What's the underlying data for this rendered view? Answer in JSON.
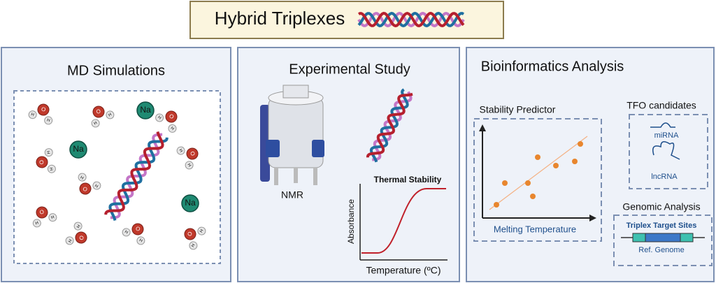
{
  "header": {
    "title": "Hybrid Triplexes"
  },
  "panels": [
    {
      "title": "MD Simulations",
      "ion": "Na",
      "atoms": {
        "oxygen": "O",
        "hydrogen": "H"
      }
    },
    {
      "title": "Experimental Study",
      "instrument": "NMR",
      "plot": {
        "title": "Thermal Stability",
        "y_label": "Absorbance",
        "x_label": "Temperature (ºC)"
      }
    },
    {
      "title": "Bioinformatics Analysis",
      "predictor": {
        "title": "Stability Predictor",
        "x_label": "Melting Temperature"
      },
      "tfo": {
        "title": "TFO candidates",
        "items": [
          "miRNA",
          "lncRNA"
        ]
      },
      "genomic": {
        "title": "Genomic Analysis",
        "target": "Triplex Target Sites",
        "reference": "Ref. Genome"
      }
    }
  ]
}
